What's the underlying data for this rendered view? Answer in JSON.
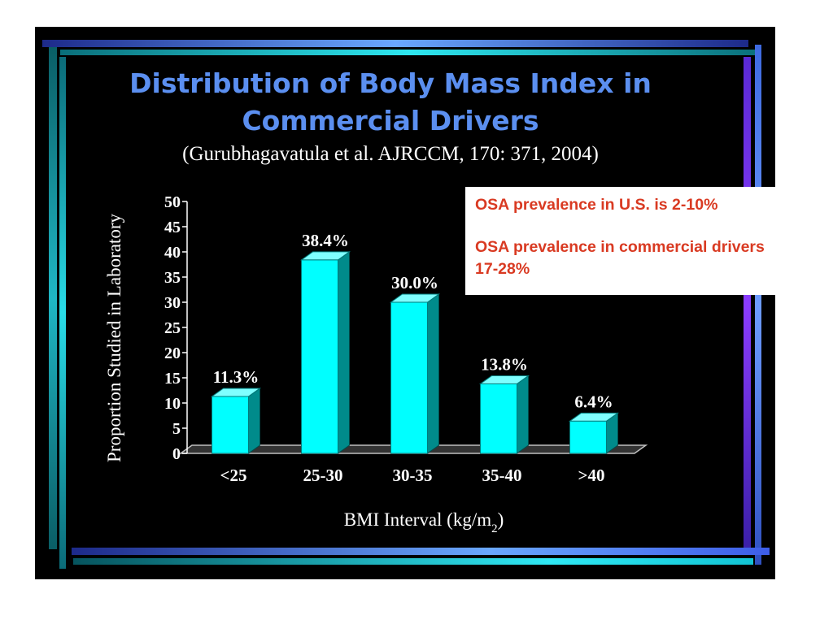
{
  "slide": {
    "title_line1": "Distribution of Body Mass Index in",
    "title_line2": "Commercial Drivers",
    "citation": "(Gurubhagavatula et al. AJRCCM, 170: 371, 2004)"
  },
  "callout": {
    "line1": "OSA prevalence in U.S. is 2-10%",
    "line2": "OSA prevalence in commercial drivers 17-28%"
  },
  "colors": {
    "bar_front": "#00ffff",
    "bar_side": "#008b8b",
    "bar_top": "#7fffff",
    "title": "#5b8ff0",
    "callout_text": "#d93a22",
    "floor": "#bfbfbf"
  },
  "chart_data": {
    "type": "bar",
    "title": "Distribution of Body Mass Index in Commercial Drivers",
    "xlabel": "BMI Interval (kg/m2)",
    "ylabel": "Proportion Studied in Laboratory",
    "categories": [
      "<25",
      "25-30",
      "30-35",
      "35-40",
      ">40"
    ],
    "values": [
      11.3,
      38.4,
      30.0,
      13.8,
      6.4
    ],
    "value_labels": [
      "11.3%",
      "38.4%",
      "30.0%",
      "13.8%",
      "6.4%"
    ],
    "ylim": [
      0,
      50
    ],
    "yticks": [
      0,
      5,
      10,
      15,
      20,
      25,
      30,
      35,
      40,
      45,
      50
    ],
    "grid": false,
    "style": "3d"
  }
}
